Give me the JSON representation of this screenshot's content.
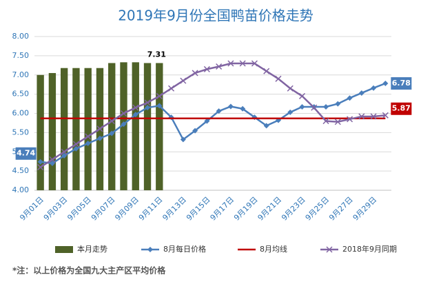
{
  "chart_data": {
    "type": "combo",
    "title": "2019年9月份全国鸭苗价格走势",
    "note": "*注：以上价格为全国九大主产区平均价格",
    "categories": [
      "9月01日",
      null,
      "9月03日",
      null,
      "9月05日",
      null,
      "9月07日",
      null,
      "9月09日",
      null,
      "9月11日",
      null,
      "9月13日",
      null,
      "9月15日",
      null,
      "9月17日",
      null,
      "9月19日",
      null,
      "9月21日",
      null,
      "9月23日",
      null,
      "9月25日",
      null,
      "9月27日",
      null,
      "9月29日",
      null
    ],
    "ylim": [
      4,
      8
    ],
    "yticks": [
      {
        "value": 4,
        "label": "4.00"
      },
      {
        "value": 4.5,
        "label": "4.50"
      },
      {
        "value": 5,
        "label": "5.00"
      },
      {
        "value": 5.5,
        "label": "5.50"
      },
      {
        "value": 6,
        "label": "6.00"
      },
      {
        "value": 6.5,
        "label": "6.50"
      },
      {
        "value": 7,
        "label": "7.00"
      },
      {
        "value": 7.5,
        "label": "7.50"
      },
      {
        "value": 8,
        "label": "8.00"
      }
    ],
    "grid": true,
    "legend": "bottom",
    "series": [
      {
        "name": "本月走势",
        "type": "bar",
        "color": "#4f6228",
        "values": [
          7.0,
          7.05,
          7.18,
          7.18,
          7.18,
          7.18,
          7.31,
          7.33,
          7.33,
          7.31,
          7.31,
          null,
          null,
          null,
          null,
          null,
          null,
          null,
          null,
          null,
          null,
          null,
          null,
          null,
          null,
          null,
          null,
          null,
          null,
          null
        ],
        "value_labels": [
          null,
          null,
          null,
          null,
          null,
          null,
          null,
          null,
          null,
          null,
          "7.31",
          null,
          null,
          null,
          null,
          null,
          null,
          null,
          null,
          null,
          null,
          null,
          null,
          null,
          null,
          null,
          null,
          null,
          null,
          null
        ]
      },
      {
        "name": "8月每日价格",
        "type": "line",
        "marker": "diamond",
        "color": "#4a7ebb",
        "values": [
          4.74,
          4.7,
          4.9,
          5.08,
          5.22,
          5.35,
          5.48,
          5.72,
          5.97,
          6.15,
          6.2,
          5.9,
          5.32,
          5.55,
          5.8,
          6.06,
          6.18,
          6.12,
          5.9,
          5.68,
          5.82,
          6.03,
          6.17,
          6.17,
          6.17,
          6.25,
          6.4,
          6.53,
          6.66,
          6.78
        ],
        "value_labels": [
          "4.74",
          null,
          null,
          null,
          null,
          null,
          null,
          null,
          null,
          null,
          null,
          null,
          null,
          null,
          null,
          null,
          null,
          null,
          null,
          null,
          null,
          null,
          null,
          null,
          null,
          null,
          null,
          null,
          null,
          "6.78"
        ]
      },
      {
        "name": "8月均线",
        "type": "line",
        "marker": "none",
        "color": "#c00000",
        "values": [
          5.87,
          5.87,
          5.87,
          5.87,
          5.87,
          5.87,
          5.87,
          5.87,
          5.87,
          5.87,
          5.87,
          5.87,
          5.87,
          5.87,
          5.87,
          5.87,
          5.87,
          5.87,
          5.87,
          5.87,
          5.87,
          5.87,
          5.87,
          5.87,
          5.87,
          5.87,
          5.87,
          5.87,
          5.87,
          5.87
        ],
        "value_labels": [
          null,
          null,
          null,
          null,
          null,
          null,
          null,
          null,
          null,
          null,
          null,
          null,
          null,
          null,
          null,
          null,
          null,
          null,
          null,
          null,
          null,
          null,
          null,
          null,
          null,
          null,
          null,
          null,
          null,
          "5.87"
        ]
      },
      {
        "name": "2018年9月同期",
        "type": "line",
        "marker": "x",
        "color": "#8064a2",
        "values": [
          4.6,
          4.8,
          5.0,
          5.2,
          5.4,
          5.6,
          5.8,
          6.0,
          6.15,
          6.28,
          6.45,
          6.65,
          6.85,
          7.05,
          7.15,
          7.22,
          7.3,
          7.3,
          7.3,
          7.1,
          6.9,
          6.65,
          6.45,
          6.15,
          5.8,
          5.78,
          5.85,
          5.92,
          5.92,
          5.95
        ]
      }
    ]
  }
}
